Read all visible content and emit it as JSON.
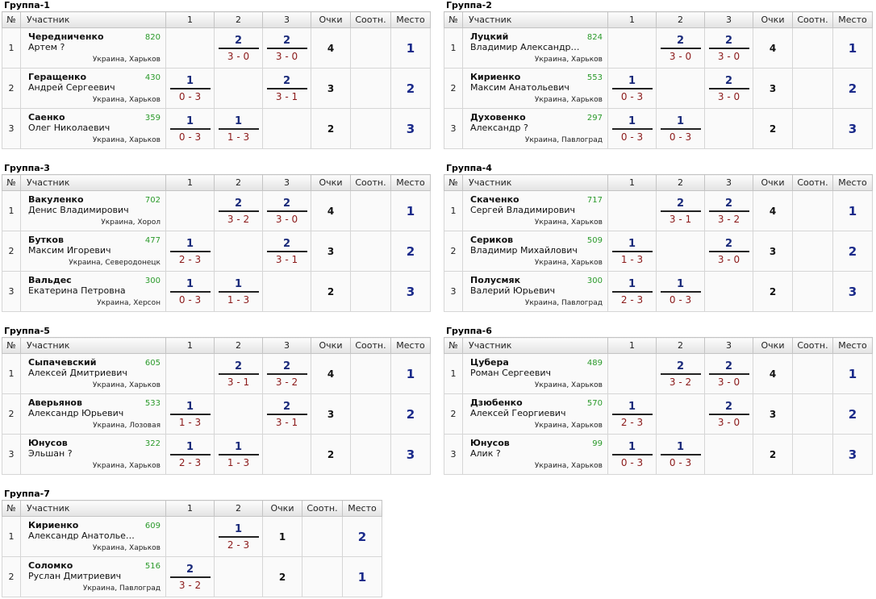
{
  "headers": {
    "num": "№",
    "participant": "Участник",
    "points": "Очки",
    "ratio": "Соотн.",
    "place": "Место"
  },
  "groups": [
    {
      "title": "Группа-1",
      "cols": [
        "1",
        "2",
        "3"
      ],
      "rows": [
        {
          "num": "1",
          "surname": "Чередниченко",
          "name": "Артем ?",
          "rating": "820",
          "city": "Украина, Харьков",
          "results": [
            null,
            {
              "p": "2",
              "s": "3 - 0"
            },
            {
              "p": "2",
              "s": "3 - 0"
            }
          ],
          "points": "4",
          "place": "1"
        },
        {
          "num": "2",
          "surname": "Геращенко",
          "name": "Андрей Сергеевич",
          "rating": "430",
          "city": "Украина, Харьков",
          "results": [
            {
              "p": "1",
              "s": "0 - 3"
            },
            null,
            {
              "p": "2",
              "s": "3 - 1"
            }
          ],
          "points": "3",
          "place": "2"
        },
        {
          "num": "3",
          "surname": "Саенко",
          "name": "Олег Николаевич",
          "rating": "359",
          "city": "Украина, Харьков",
          "results": [
            {
              "p": "1",
              "s": "0 - 3"
            },
            {
              "p": "1",
              "s": "1 - 3"
            },
            null
          ],
          "points": "2",
          "place": "3"
        }
      ]
    },
    {
      "title": "Группа-2",
      "cols": [
        "1",
        "2",
        "3"
      ],
      "rows": [
        {
          "num": "1",
          "surname": "Луцкий",
          "name": "Владимир Александро...",
          "rating": "824",
          "city": "Украина, Харьков",
          "results": [
            null,
            {
              "p": "2",
              "s": "3 - 0"
            },
            {
              "p": "2",
              "s": "3 - 0"
            }
          ],
          "points": "4",
          "place": "1"
        },
        {
          "num": "2",
          "surname": "Кириенко",
          "name": "Максим Анатольевич",
          "rating": "553",
          "city": "Украина, Харьков",
          "results": [
            {
              "p": "1",
              "s": "0 - 3"
            },
            null,
            {
              "p": "2",
              "s": "3 - 0"
            }
          ],
          "points": "3",
          "place": "2"
        },
        {
          "num": "3",
          "surname": "Духовенко",
          "name": "Александр ?",
          "rating": "297",
          "city": "Украина, Павлоград",
          "results": [
            {
              "p": "1",
              "s": "0 - 3"
            },
            {
              "p": "1",
              "s": "0 - 3"
            },
            null
          ],
          "points": "2",
          "place": "3"
        }
      ]
    },
    {
      "title": "Группа-3",
      "cols": [
        "1",
        "2",
        "3"
      ],
      "rows": [
        {
          "num": "1",
          "surname": "Вакуленко",
          "name": "Денис Владимирович",
          "rating": "702",
          "city": "Украина, Хорол",
          "results": [
            null,
            {
              "p": "2",
              "s": "3 - 2"
            },
            {
              "p": "2",
              "s": "3 - 0"
            }
          ],
          "points": "4",
          "place": "1"
        },
        {
          "num": "2",
          "surname": "Бутков",
          "name": "Максим Игоревич",
          "rating": "477",
          "city": "Украина, Северодонецк",
          "results": [
            {
              "p": "1",
              "s": "2 - 3"
            },
            null,
            {
              "p": "2",
              "s": "3 - 1"
            }
          ],
          "points": "3",
          "place": "2"
        },
        {
          "num": "3",
          "surname": "Вальдес",
          "name": "Екатерина Петровна",
          "rating": "300",
          "city": "Украина, Херсон",
          "results": [
            {
              "p": "1",
              "s": "0 - 3"
            },
            {
              "p": "1",
              "s": "1 - 3"
            },
            null
          ],
          "points": "2",
          "place": "3"
        }
      ]
    },
    {
      "title": "Группа-4",
      "cols": [
        "1",
        "2",
        "3"
      ],
      "rows": [
        {
          "num": "1",
          "surname": "Скаченко",
          "name": "Сергей Владимирович",
          "rating": "717",
          "city": "Украина, Харьков",
          "results": [
            null,
            {
              "p": "2",
              "s": "3 - 1"
            },
            {
              "p": "2",
              "s": "3 - 2"
            }
          ],
          "points": "4",
          "place": "1"
        },
        {
          "num": "2",
          "surname": "Сериков",
          "name": "Владимир Михайлович",
          "rating": "509",
          "city": "Украина, Харьков",
          "results": [
            {
              "p": "1",
              "s": "1 - 3"
            },
            null,
            {
              "p": "2",
              "s": "3 - 0"
            }
          ],
          "points": "3",
          "place": "2"
        },
        {
          "num": "3",
          "surname": "Полусмяк",
          "name": "Валерий Юрьевич",
          "rating": "300",
          "city": "Украина, Павлоград",
          "results": [
            {
              "p": "1",
              "s": "2 - 3"
            },
            {
              "p": "1",
              "s": "0 - 3"
            },
            null
          ],
          "points": "2",
          "place": "3"
        }
      ]
    },
    {
      "title": "Группа-5",
      "cols": [
        "1",
        "2",
        "3"
      ],
      "rows": [
        {
          "num": "1",
          "surname": "Сыпачевский",
          "name": "Алексей Дмитриевич",
          "rating": "605",
          "city": "Украина, Харьков",
          "results": [
            null,
            {
              "p": "2",
              "s": "3 - 1"
            },
            {
              "p": "2",
              "s": "3 - 2"
            }
          ],
          "points": "4",
          "place": "1"
        },
        {
          "num": "2",
          "surname": "Аверьянов",
          "name": "Александр Юрьевич",
          "rating": "533",
          "city": "Украина, Лозовая",
          "results": [
            {
              "p": "1",
              "s": "1 - 3"
            },
            null,
            {
              "p": "2",
              "s": "3 - 1"
            }
          ],
          "points": "3",
          "place": "2"
        },
        {
          "num": "3",
          "surname": "Юнусов",
          "name": "Эльшан ?",
          "rating": "322",
          "city": "Украина, Харьков",
          "results": [
            {
              "p": "1",
              "s": "2 - 3"
            },
            {
              "p": "1",
              "s": "1 - 3"
            },
            null
          ],
          "points": "2",
          "place": "3"
        }
      ]
    },
    {
      "title": "Группа-6",
      "cols": [
        "1",
        "2",
        "3"
      ],
      "rows": [
        {
          "num": "1",
          "surname": "Цубера",
          "name": "Роман Сергеевич",
          "rating": "489",
          "city": "Украина, Харьков",
          "results": [
            null,
            {
              "p": "2",
              "s": "3 - 2"
            },
            {
              "p": "2",
              "s": "3 - 0"
            }
          ],
          "points": "4",
          "place": "1"
        },
        {
          "num": "2",
          "surname": "Дзюбенко",
          "name": "Алексей Георгиевич",
          "rating": "570",
          "city": "Украина, Харьков",
          "results": [
            {
              "p": "1",
              "s": "2 - 3"
            },
            null,
            {
              "p": "2",
              "s": "3 - 0"
            }
          ],
          "points": "3",
          "place": "2"
        },
        {
          "num": "3",
          "surname": "Юнусов",
          "name": "Алик ?",
          "rating": "99",
          "city": "Украина, Харьков",
          "results": [
            {
              "p": "1",
              "s": "0 - 3"
            },
            {
              "p": "1",
              "s": "0 - 3"
            },
            null
          ],
          "points": "2",
          "place": "3"
        }
      ]
    },
    {
      "title": "Группа-7",
      "cols": [
        "1",
        "2"
      ],
      "rows": [
        {
          "num": "1",
          "surname": "Кириенко",
          "name": "Александр Анатольевич",
          "rating": "609",
          "city": "Украина, Харьков",
          "results": [
            null,
            {
              "p": "1",
              "s": "2 - 3"
            }
          ],
          "points": "1",
          "place": "2"
        },
        {
          "num": "2",
          "surname": "Соломко",
          "name": "Руслан Дмитриевич",
          "rating": "516",
          "city": "Украина, Павлоград",
          "results": [
            {
              "p": "2",
              "s": "3 - 2"
            },
            null
          ],
          "points": "2",
          "place": "1"
        }
      ]
    }
  ]
}
